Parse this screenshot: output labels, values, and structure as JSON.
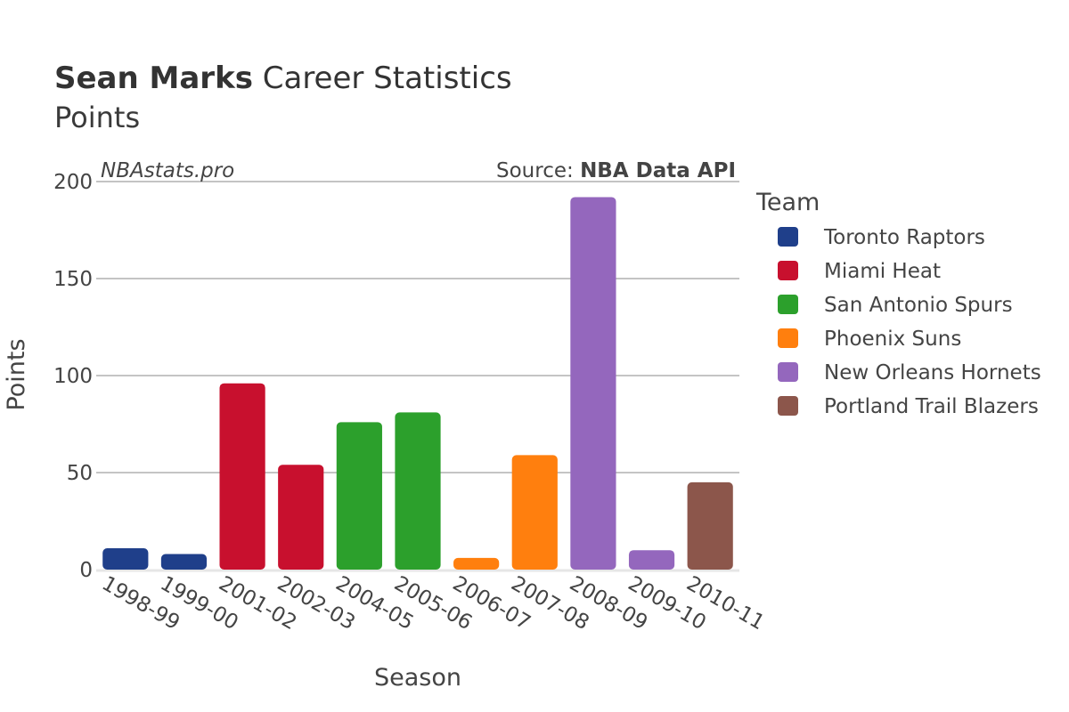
{
  "title": {
    "player": "Sean Marks",
    "rest": "Career Statistics"
  },
  "subtitle": "Points",
  "watermark": "NBAstats.pro",
  "source": {
    "prefix": "Source: ",
    "name": "NBA Data API"
  },
  "chart_data": {
    "type": "bar",
    "xlabel": "Season",
    "ylabel": "Points",
    "ylim": [
      0,
      200
    ],
    "yticks": [
      0,
      50,
      100,
      150,
      200
    ],
    "categories": [
      "1998-99",
      "1999-00",
      "2001-02",
      "2002-03",
      "2004-05",
      "2005-06",
      "2006-07",
      "2007-08",
      "2008-09",
      "2009-10",
      "2010-11"
    ],
    "values": [
      11,
      8,
      96,
      54,
      76,
      81,
      6,
      59,
      192,
      10,
      45
    ],
    "teams": [
      "Toronto Raptors",
      "Toronto Raptors",
      "Miami Heat",
      "Miami Heat",
      "San Antonio Spurs",
      "San Antonio Spurs",
      "Phoenix Suns",
      "Phoenix Suns",
      "New Orleans Hornets",
      "New Orleans Hornets",
      "Portland Trail Blazers"
    ],
    "legend": {
      "title": "Team",
      "items": [
        {
          "name": "Toronto Raptors",
          "color": "#1f3f8a"
        },
        {
          "name": "Miami Heat",
          "color": "#c8102e"
        },
        {
          "name": "San Antonio Spurs",
          "color": "#2ca02c"
        },
        {
          "name": "Phoenix Suns",
          "color": "#ff7f0e"
        },
        {
          "name": "New Orleans Hornets",
          "color": "#9467bd"
        },
        {
          "name": "Portland Trail Blazers",
          "color": "#8c564b"
        }
      ]
    }
  }
}
